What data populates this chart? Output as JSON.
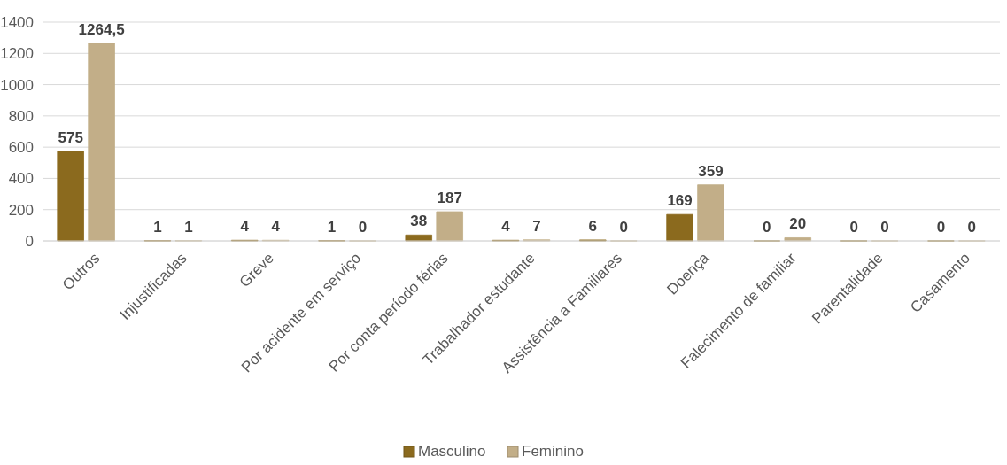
{
  "chart_data": {
    "type": "bar",
    "categories": [
      "Outros",
      "Injustificadas",
      "Greve",
      "Por acidente em serviço",
      "Por conta período férias",
      "Trabalhador estudante",
      "Assistência a Familiares",
      "Doença",
      "Falecimento de familiar",
      "Parentalidade",
      "Casamento"
    ],
    "series": [
      {
        "name": "Masculino",
        "color": "#8b6a1e",
        "values": [
          575,
          1,
          4,
          1,
          38,
          4,
          6,
          169,
          0,
          0,
          0
        ],
        "value_labels": [
          "575",
          "1",
          "4",
          "1",
          "38",
          "4",
          "6",
          "169",
          "0",
          "0",
          "0"
        ]
      },
      {
        "name": "Feminino",
        "color": "#c2ae88",
        "values": [
          1264.5,
          1,
          4,
          0,
          187,
          7,
          0,
          359,
          20,
          0,
          0
        ],
        "value_labels": [
          "1264,5",
          "1",
          "4",
          "0",
          "187",
          "7",
          "0",
          "359",
          "20",
          "0",
          "0"
        ]
      }
    ],
    "ylim": [
      0,
      1400
    ],
    "yticks": [
      0,
      200,
      400,
      600,
      800,
      1000,
      1200,
      1400
    ],
    "grid": "y",
    "legend": "bottom"
  }
}
